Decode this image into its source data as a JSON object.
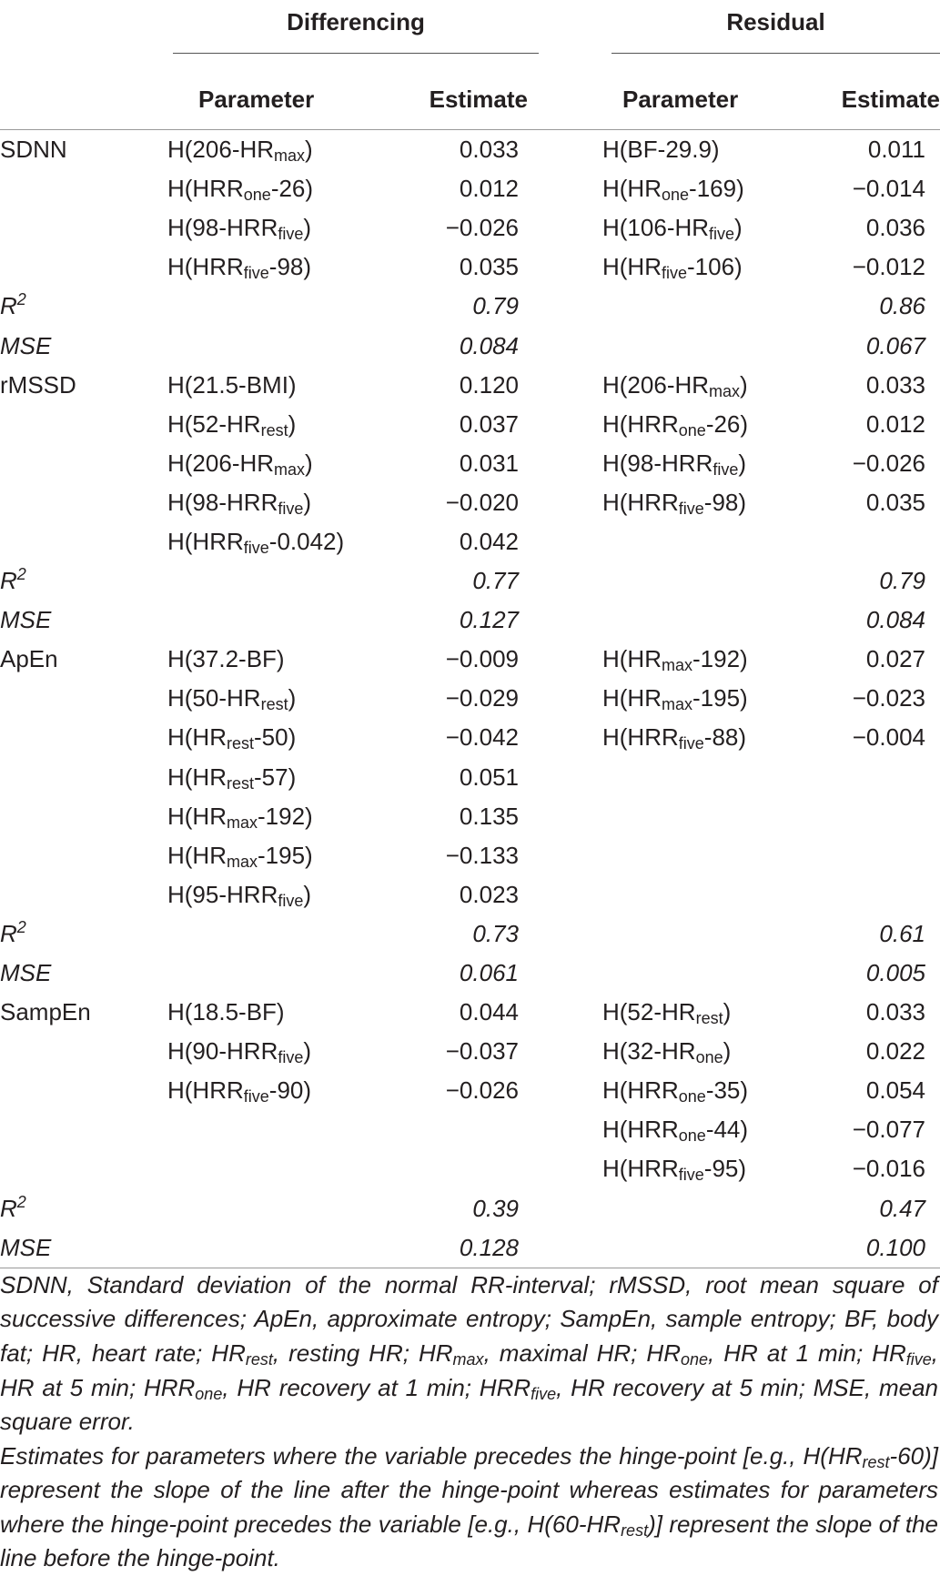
{
  "header": {
    "groups": [
      "Differencing",
      "Residual"
    ],
    "columns": [
      "Parameter",
      "Estimate",
      "Parameter",
      "Estimate"
    ]
  },
  "sections": [
    {
      "label": "SDNN",
      "rows": [
        [
          [
            "H(206-HR",
            "max",
            ")"
          ],
          "0.033",
          [
            "H(BF-29.9)"
          ],
          "0.011"
        ],
        [
          [
            "H(HRR",
            "one",
            "-26)"
          ],
          "0.012",
          [
            "H(HR",
            "one",
            "-169)"
          ],
          "−0.014"
        ],
        [
          [
            "H(98-HRR",
            "five",
            ")"
          ],
          "−0.026",
          [
            "H(106-HR",
            "five",
            ")"
          ],
          "0.036"
        ],
        [
          [
            "H(HRR",
            "five",
            "-98)"
          ],
          "0.035",
          [
            "H(HR",
            "five",
            "-106)"
          ],
          "−0.012"
        ]
      ],
      "r2": {
        "label": [
          "R",
          "2"
        ],
        "values": [
          "0.79",
          "0.86"
        ]
      },
      "mse": {
        "label": "MSE",
        "values": [
          "0.084",
          "0.067"
        ]
      }
    },
    {
      "label": "rMSSD",
      "rows": [
        [
          [
            "H(21.5-BMI)"
          ],
          "0.120",
          [
            "H(206-HR",
            "max",
            ")"
          ],
          "0.033"
        ],
        [
          [
            "H(52-HR",
            "rest",
            ")"
          ],
          "0.037",
          [
            "H(HRR",
            "one",
            "-26)"
          ],
          "0.012"
        ],
        [
          [
            "H(206-HR",
            "max",
            ")"
          ],
          "0.031",
          [
            "H(98-HRR",
            "five",
            ")"
          ],
          "−0.026"
        ],
        [
          [
            "H(98-HRR",
            "five",
            ")"
          ],
          "−0.020",
          [
            "H(HRR",
            "five",
            "-98)"
          ],
          "0.035"
        ],
        [
          [
            "H(HRR",
            "five",
            "-0.042)"
          ],
          "0.042",
          null,
          null
        ]
      ],
      "r2": {
        "label": [
          "R",
          "2"
        ],
        "values": [
          "0.77",
          "0.79"
        ]
      },
      "mse": {
        "label": "MSE",
        "values": [
          "0.127",
          "0.084"
        ]
      }
    },
    {
      "label": "ApEn",
      "rows": [
        [
          [
            "H(37.2-BF)"
          ],
          "−0.009",
          [
            "H(HR",
            "max",
            "-192)"
          ],
          "0.027"
        ],
        [
          [
            "H(50-HR",
            "rest",
            ")"
          ],
          "−0.029",
          [
            "H(HR",
            "max",
            "-195)"
          ],
          "−0.023"
        ],
        [
          [
            "H(HR",
            "rest",
            "-50)"
          ],
          "−0.042",
          [
            "H(HRR",
            "five",
            "-88)"
          ],
          "−0.004"
        ],
        [
          [
            "H(HR",
            "rest",
            "-57)"
          ],
          "0.051",
          null,
          null
        ],
        [
          [
            "H(HR",
            "max",
            "-192)"
          ],
          "0.135",
          null,
          null
        ],
        [
          [
            "H(HR",
            "max",
            "-195)"
          ],
          "−0.133",
          null,
          null
        ],
        [
          [
            "H(95-HRR",
            "five",
            ")"
          ],
          "0.023",
          null,
          null
        ]
      ],
      "r2": {
        "label": [
          "R",
          "2"
        ],
        "values": [
          "0.73",
          "0.61"
        ]
      },
      "mse": {
        "label": "MSE",
        "values": [
          "0.061",
          "0.005"
        ]
      }
    },
    {
      "label": "SampEn",
      "rows": [
        [
          [
            "H(18.5-BF)"
          ],
          "0.044",
          [
            "H(52-HR",
            "rest",
            ")"
          ],
          "0.033"
        ],
        [
          [
            "H(90-HRR",
            "five",
            ")"
          ],
          "−0.037",
          [
            "H(32-HR",
            "one",
            ")"
          ],
          "0.022"
        ],
        [
          [
            "H(HRR",
            "five",
            "-90)"
          ],
          "−0.026",
          [
            "H(HRR",
            "one",
            "-35)"
          ],
          "0.054"
        ],
        [
          null,
          null,
          [
            "H(HRR",
            "one",
            "-44)"
          ],
          "−0.077"
        ],
        [
          null,
          null,
          [
            "H(HRR",
            "five",
            "-95)"
          ],
          "−0.016"
        ]
      ],
      "r2": {
        "label": [
          "R",
          "2"
        ],
        "values": [
          "0.39",
          "0.47"
        ]
      },
      "mse": {
        "label": "MSE",
        "values": [
          "0.128",
          "0.100"
        ]
      }
    }
  ],
  "footnotes": [
    [
      "SDNN, Standard deviation of the normal RR-interval; rMSSD, root mean square of successive differences; ApEn, approximate entropy; SampEn, sample entropy; BF, body fat; HR, heart rate; HR",
      "rest",
      ", resting HR; HR",
      "max",
      ", maximal HR; HR",
      "one",
      ", HR at 1 min; HR",
      "five",
      ", HR at 5 min; HRR",
      "one",
      ", HR recovery at 1 min; HRR",
      "five",
      ", HR recovery at 5 min; MSE, mean square error."
    ],
    [
      "Estimates for parameters where the variable precedes the hinge-point [e.g., H(HR",
      "rest",
      "-60)] represent the slope of the line after the hinge-point whereas estimates for parameters where the hinge-point precedes the variable [e.g., H(60-HR",
      "rest",
      ")] represent the slope of the line before the hinge-point."
    ]
  ]
}
